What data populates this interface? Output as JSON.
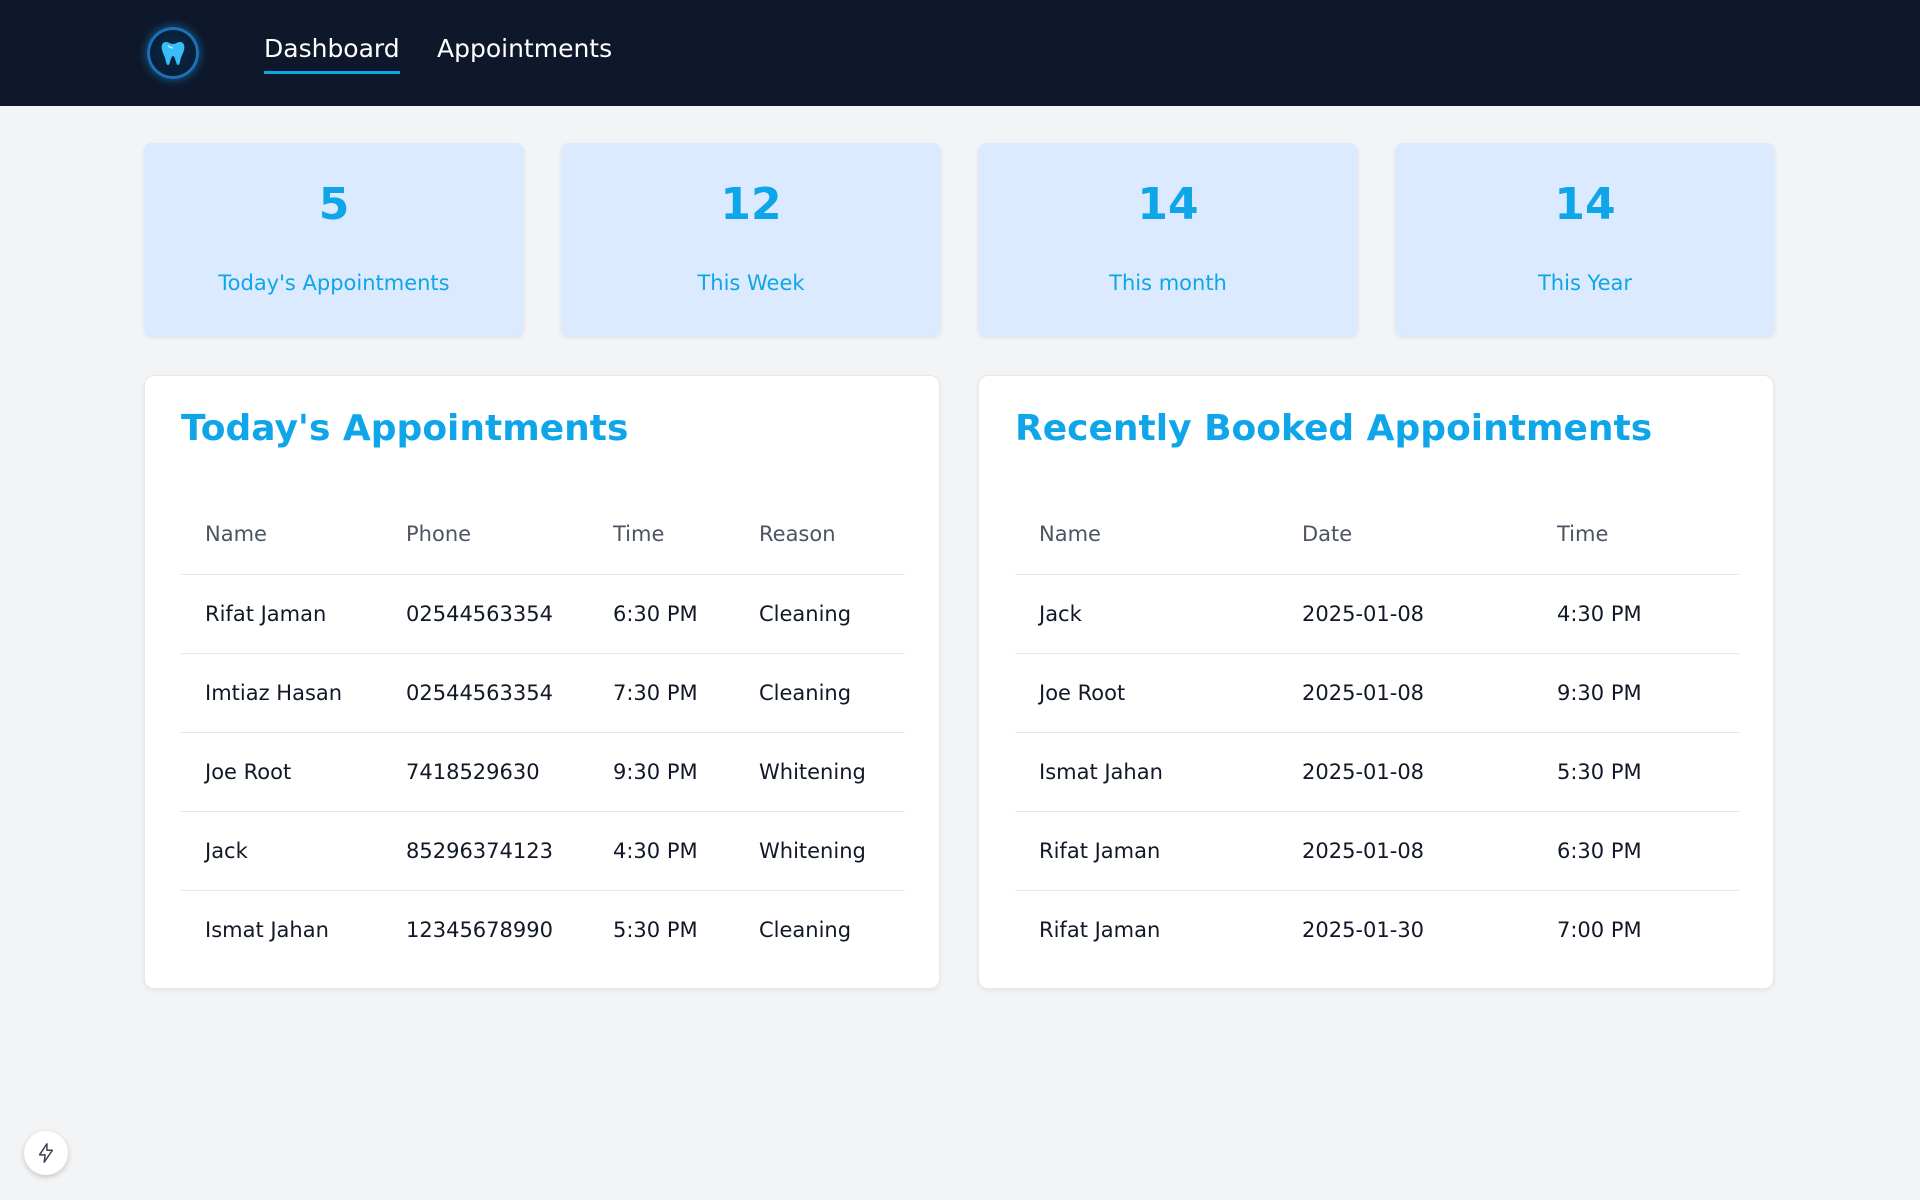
{
  "nav": {
    "links": [
      {
        "label": "Dashboard",
        "active": true
      },
      {
        "label": "Appointments",
        "active": false
      }
    ],
    "logo_icon": "tooth-icon"
  },
  "stats": [
    {
      "value": "5",
      "label": "Today's Appointments"
    },
    {
      "value": "12",
      "label": "This Week"
    },
    {
      "value": "14",
      "label": "This month"
    },
    {
      "value": "14",
      "label": "This Year"
    }
  ],
  "today": {
    "title": "Today's Appointments",
    "columns": [
      "Name",
      "Phone",
      "Time",
      "Reason"
    ],
    "rows": [
      [
        "Rifat Jaman",
        "02544563354",
        "6:30 PM",
        "Cleaning"
      ],
      [
        "Imtiaz Hasan",
        "02544563354",
        "7:30 PM",
        "Cleaning"
      ],
      [
        "Joe Root",
        "7418529630",
        "9:30 PM",
        "Whitening"
      ],
      [
        "Jack",
        "85296374123",
        "4:30 PM",
        "Whitening"
      ],
      [
        "Ismat Jahan",
        "12345678990",
        "5:30 PM",
        "Cleaning"
      ]
    ]
  },
  "recent": {
    "title": "Recently Booked Appointments",
    "columns": [
      "Name",
      "Date",
      "Time"
    ],
    "rows": [
      [
        "Jack",
        "2025-01-08",
        "4:30 PM"
      ],
      [
        "Joe Root",
        "2025-01-08",
        "9:30 PM"
      ],
      [
        "Ismat Jahan",
        "2025-01-08",
        "5:30 PM"
      ],
      [
        "Rifat Jaman",
        "2025-01-08",
        "6:30 PM"
      ],
      [
        "Rifat Jaman",
        "2025-01-30",
        "7:00 PM"
      ]
    ]
  },
  "colors": {
    "navbar": "#0f172a",
    "accent": "#0ea5e9",
    "card_bg": "#dbeafe"
  },
  "floating_button_icon": "lightning-bolt-icon"
}
